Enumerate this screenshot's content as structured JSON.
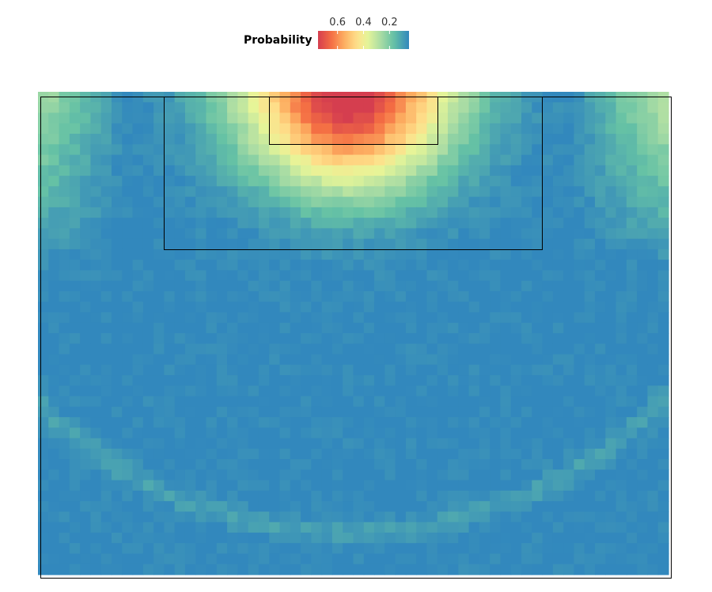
{
  "chart_data": {
    "type": "heatmap",
    "title": "",
    "xlabel": "",
    "ylabel": "",
    "legend": {
      "title": "Probability",
      "position": "top",
      "reversed": true,
      "range": [
        0.05,
        0.75
      ],
      "ticks": [
        {
          "value": 0.6,
          "label": "0.6"
        },
        {
          "value": 0.4,
          "label": "0.4"
        },
        {
          "value": 0.2,
          "label": "0.2"
        }
      ]
    },
    "colorscale": {
      "name": "Spectral",
      "stops": [
        {
          "value": 0.05,
          "color": "#3288bd"
        },
        {
          "value": 0.17,
          "color": "#66c2a5"
        },
        {
          "value": 0.27,
          "color": "#abdda4"
        },
        {
          "value": 0.37,
          "color": "#e6f598"
        },
        {
          "value": 0.45,
          "color": "#fee08b"
        },
        {
          "value": 0.55,
          "color": "#fdae61"
        },
        {
          "value": 0.65,
          "color": "#f46d43"
        },
        {
          "value": 0.75,
          "color": "#d53e4f"
        }
      ]
    },
    "grid": {
      "columns": 60,
      "rows": 46,
      "model": {
        "center_column": 29.5,
        "base": 0.05,
        "goal_peak": 0.72,
        "goal_width": 5.5,
        "side_peak": 0.24,
        "arc_radius": 42,
        "arc_peak": 0.05
      }
    },
    "markings": {
      "penalty_area": {
        "x": [
          12,
          48
        ],
        "y": [
          0,
          15
        ]
      },
      "goal_area": {
        "x": [
          22,
          38
        ],
        "y": [
          0,
          5
        ]
      },
      "pitch": {
        "x": [
          0,
          60
        ],
        "y": [
          0,
          46
        ]
      }
    },
    "grid_lines": false
  }
}
